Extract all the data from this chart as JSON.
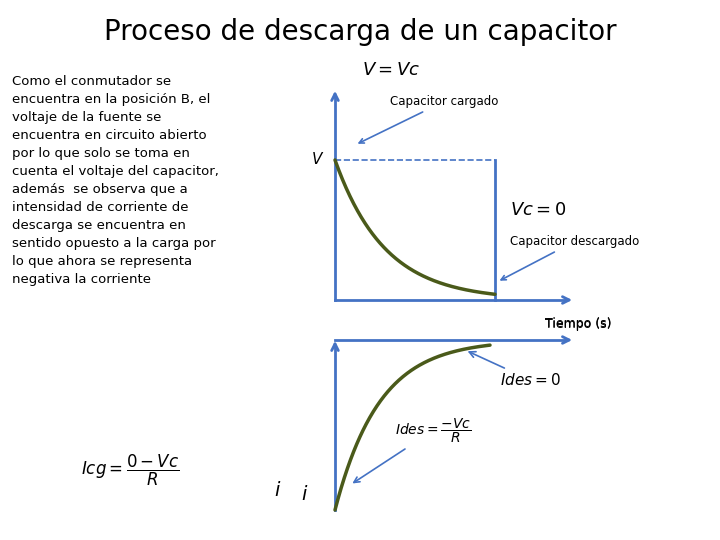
{
  "title": "Proceso de descarga de un capacitor",
  "title_fontsize": 20,
  "background_color": "#ffffff",
  "text_color": "#000000",
  "curve_color": "#4a5a1a",
  "axis_color": "#4472c4",
  "left_text_lines": [
    "Como el conmutador se",
    "encuentra en la posición B, el",
    "voltaje de la fuente se",
    "encuentra en circuito abierto",
    "por lo que solo se toma en",
    "cuenta el voltaje del capacitor,",
    "además  se observa que a",
    "intensidad de corriente de",
    "descarga se encuentra en",
    "sentido opuesto a la carga por",
    "lo que ahora se representa",
    "negativa la corriente"
  ],
  "top_graph": {
    "xlabel": "Tiempo (s)",
    "ylabel": "V",
    "label_vc_eq": "$V = Vc$",
    "label_cap_cargado": "Capacitor cargado",
    "label_vc_zero": "$Vc = 0$",
    "label_cap_descargado": "Capacitor descargado"
  },
  "bottom_graph": {
    "xlabel": "Tiempo (s)",
    "label_ides_eq": "$Ides = 0$",
    "label_ides_formula": "$Ides = \\dfrac{-Vc}{R}$"
  },
  "formula_icg": "$Icg = \\dfrac{0 - Vc}{R}$",
  "formula_i_label": "$i$"
}
